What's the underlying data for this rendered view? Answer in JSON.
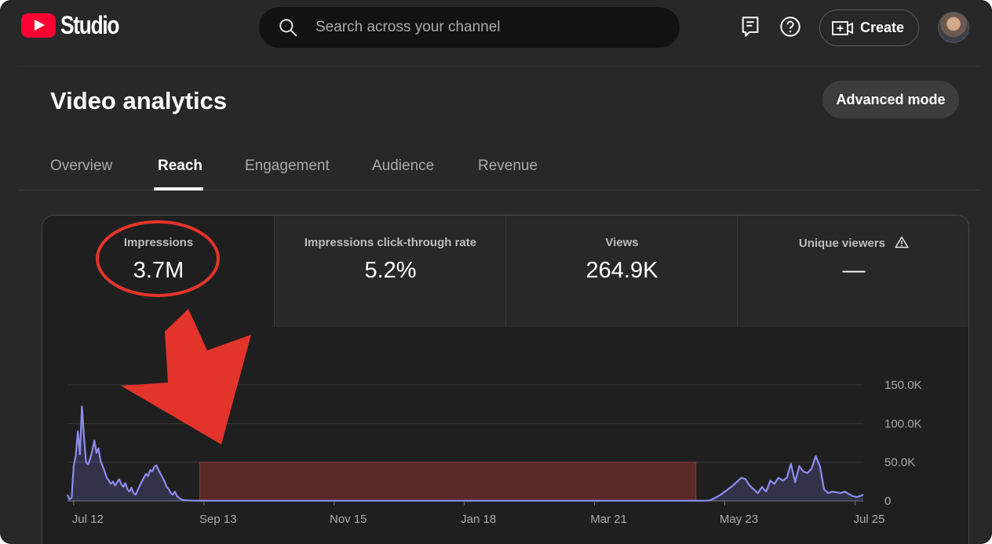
{
  "header": {
    "logo_text": "Studio",
    "search_placeholder": "Search across your channel",
    "create_label": "Create"
  },
  "page": {
    "title": "Video analytics",
    "advanced_mode_label": "Advanced mode"
  },
  "tabs": [
    {
      "label": "Overview",
      "active": false
    },
    {
      "label": "Reach",
      "active": true
    },
    {
      "label": "Engagement",
      "active": false
    },
    {
      "label": "Audience",
      "active": false
    },
    {
      "label": "Revenue",
      "active": false
    }
  ],
  "metrics": [
    {
      "label": "Impressions",
      "value": "3.7M",
      "selected": true
    },
    {
      "label": "Impressions click-through rate",
      "value": "5.2%",
      "selected": false
    },
    {
      "label": "Views",
      "value": "264.9K",
      "selected": false
    },
    {
      "label": "Unique viewers",
      "value": "—",
      "selected": false,
      "warning": true
    }
  ],
  "colors": {
    "background": "#282828",
    "line": "#8c8cf0",
    "highlight_box": "#5a2a26",
    "annotation_red": "#e3342b"
  },
  "chart_data": {
    "type": "area",
    "y_ticks": [
      "150.0K",
      "100.0K",
      "50.0K",
      "0"
    ],
    "x_ticks": [
      "Jul 12",
      "Sep 13",
      "Nov 15",
      "Jan 18",
      "Mar 21",
      "May 23",
      "Jul 25"
    ],
    "ylim": [
      0,
      150000
    ],
    "x_index_range": [
      0,
      385
    ],
    "x_tick_index": [
      3,
      66,
      129,
      192,
      255,
      318,
      381
    ],
    "series": [
      {
        "points": [
          [
            0,
            8000
          ],
          [
            1,
            2000
          ],
          [
            2,
            4000
          ],
          [
            3,
            45000
          ],
          [
            4,
            58000
          ],
          [
            5,
            90000
          ],
          [
            6,
            60000
          ],
          [
            7,
            122000
          ],
          [
            8,
            82000
          ],
          [
            9,
            50000
          ],
          [
            10,
            47000
          ],
          [
            11,
            55000
          ],
          [
            12,
            65000
          ],
          [
            13,
            78000
          ],
          [
            14,
            62000
          ],
          [
            15,
            68000
          ],
          [
            16,
            52000
          ],
          [
            17,
            45000
          ],
          [
            18,
            38000
          ],
          [
            19,
            30000
          ],
          [
            20,
            26000
          ],
          [
            21,
            22000
          ],
          [
            22,
            25000
          ],
          [
            23,
            20000
          ],
          [
            24,
            24000
          ],
          [
            25,
            28000
          ],
          [
            26,
            22000
          ],
          [
            27,
            18000
          ],
          [
            28,
            23000
          ],
          [
            29,
            15000
          ],
          [
            30,
            12000
          ],
          [
            31,
            17000
          ],
          [
            32,
            10000
          ],
          [
            33,
            8000
          ],
          [
            34,
            14000
          ],
          [
            35,
            20000
          ],
          [
            36,
            25000
          ],
          [
            37,
            30000
          ],
          [
            38,
            35000
          ],
          [
            39,
            32000
          ],
          [
            40,
            40000
          ],
          [
            41,
            38000
          ],
          [
            42,
            44000
          ],
          [
            43,
            46000
          ],
          [
            44,
            40000
          ],
          [
            45,
            35000
          ],
          [
            46,
            30000
          ],
          [
            47,
            25000
          ],
          [
            48,
            18000
          ],
          [
            49,
            15000
          ],
          [
            50,
            10000
          ],
          [
            51,
            8000
          ],
          [
            52,
            12000
          ],
          [
            53,
            6000
          ],
          [
            54,
            4000
          ],
          [
            55,
            2000
          ],
          [
            56,
            1000
          ],
          [
            60,
            300
          ],
          [
            70,
            200
          ],
          [
            100,
            200
          ],
          [
            150,
            200
          ],
          [
            200,
            200
          ],
          [
            250,
            200
          ],
          [
            300,
            200
          ],
          [
            310,
            300
          ],
          [
            312,
            2000
          ],
          [
            314,
            5000
          ],
          [
            316,
            8000
          ],
          [
            318,
            12000
          ],
          [
            320,
            16000
          ],
          [
            322,
            20000
          ],
          [
            324,
            25000
          ],
          [
            326,
            30000
          ],
          [
            328,
            28000
          ],
          [
            330,
            20000
          ],
          [
            332,
            15000
          ],
          [
            334,
            10000
          ],
          [
            336,
            18000
          ],
          [
            338,
            12000
          ],
          [
            340,
            26000
          ],
          [
            342,
            22000
          ],
          [
            344,
            30000
          ],
          [
            346,
            26000
          ],
          [
            348,
            30000
          ],
          [
            350,
            48000
          ],
          [
            352,
            24000
          ],
          [
            354,
            45000
          ],
          [
            356,
            38000
          ],
          [
            358,
            36000
          ],
          [
            360,
            42000
          ],
          [
            362,
            58000
          ],
          [
            364,
            45000
          ],
          [
            366,
            15000
          ],
          [
            368,
            10000
          ],
          [
            370,
            12000
          ],
          [
            372,
            11000
          ],
          [
            374,
            10000
          ],
          [
            376,
            12000
          ],
          [
            378,
            9000
          ],
          [
            380,
            6000
          ],
          [
            382,
            5000
          ],
          [
            384,
            7000
          ],
          [
            385,
            8000
          ]
        ]
      }
    ],
    "highlight_range": {
      "x_start": 64,
      "x_end": 304,
      "y_top": 50000
    }
  }
}
